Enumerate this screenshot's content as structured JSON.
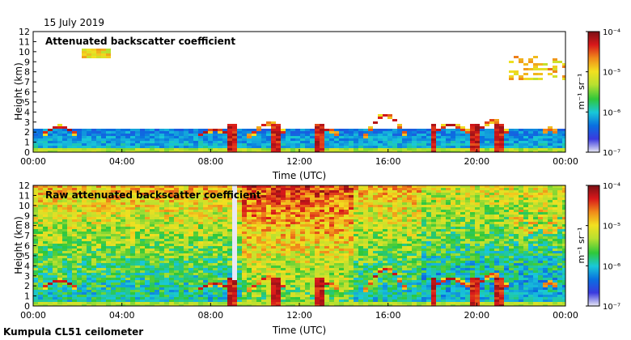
{
  "header": {
    "date": "15 July 2019",
    "instrument": "Kumpula CL51 ceilometer"
  },
  "colorbar_stops": [
    "#e8e8f4",
    "#3a3adf",
    "#0a6fe0",
    "#19c8d8",
    "#2fc83a",
    "#b8e030",
    "#f2e020",
    "#f08a1a",
    "#d8181a",
    "#7a1015"
  ],
  "chart_data": [
    {
      "type": "heatmap",
      "title": "Attenuated backscatter coefficient",
      "xlabel": "Time (UTC)",
      "ylabel": "Height (km)",
      "x_ticks": [
        "00:00",
        "04:00",
        "08:00",
        "12:00",
        "16:00",
        "20:00",
        "00:00"
      ],
      "x_range_hours": [
        0,
        24
      ],
      "y_ticks": [
        "0",
        "1",
        "2",
        "3",
        "4",
        "5",
        "6",
        "7",
        "8",
        "9",
        "10",
        "11",
        "12"
      ],
      "y_range_km": [
        0,
        12
      ],
      "colorbar": {
        "unit_text": "m⁻¹ sr⁻¹",
        "scale": "log",
        "ticks": [
          "10⁻⁷",
          "10⁻⁶",
          "10⁻⁵",
          "10⁻⁴"
        ],
        "range": [
          1e-07,
          0.0001
        ]
      }
    },
    {
      "type": "heatmap",
      "title": "Raw attenuated backscatter coefficient",
      "xlabel": "Time (UTC)",
      "ylabel": "Height (km)",
      "x_ticks": [
        "00:00",
        "04:00",
        "08:00",
        "12:00",
        "16:00",
        "20:00",
        "00:00"
      ],
      "x_range_hours": [
        0,
        24
      ],
      "y_ticks": [
        "0",
        "1",
        "2",
        "3",
        "4",
        "5",
        "6",
        "7",
        "8",
        "9",
        "10",
        "11",
        "12"
      ],
      "y_range_km": [
        0,
        12
      ],
      "colorbar": {
        "unit_text": "m⁻¹ sr⁻¹",
        "scale": "log",
        "ticks": [
          "10⁻⁷",
          "10⁻⁶",
          "10⁻⁵",
          "10⁻⁴"
        ],
        "range": [
          1e-07,
          0.0001
        ]
      }
    }
  ]
}
